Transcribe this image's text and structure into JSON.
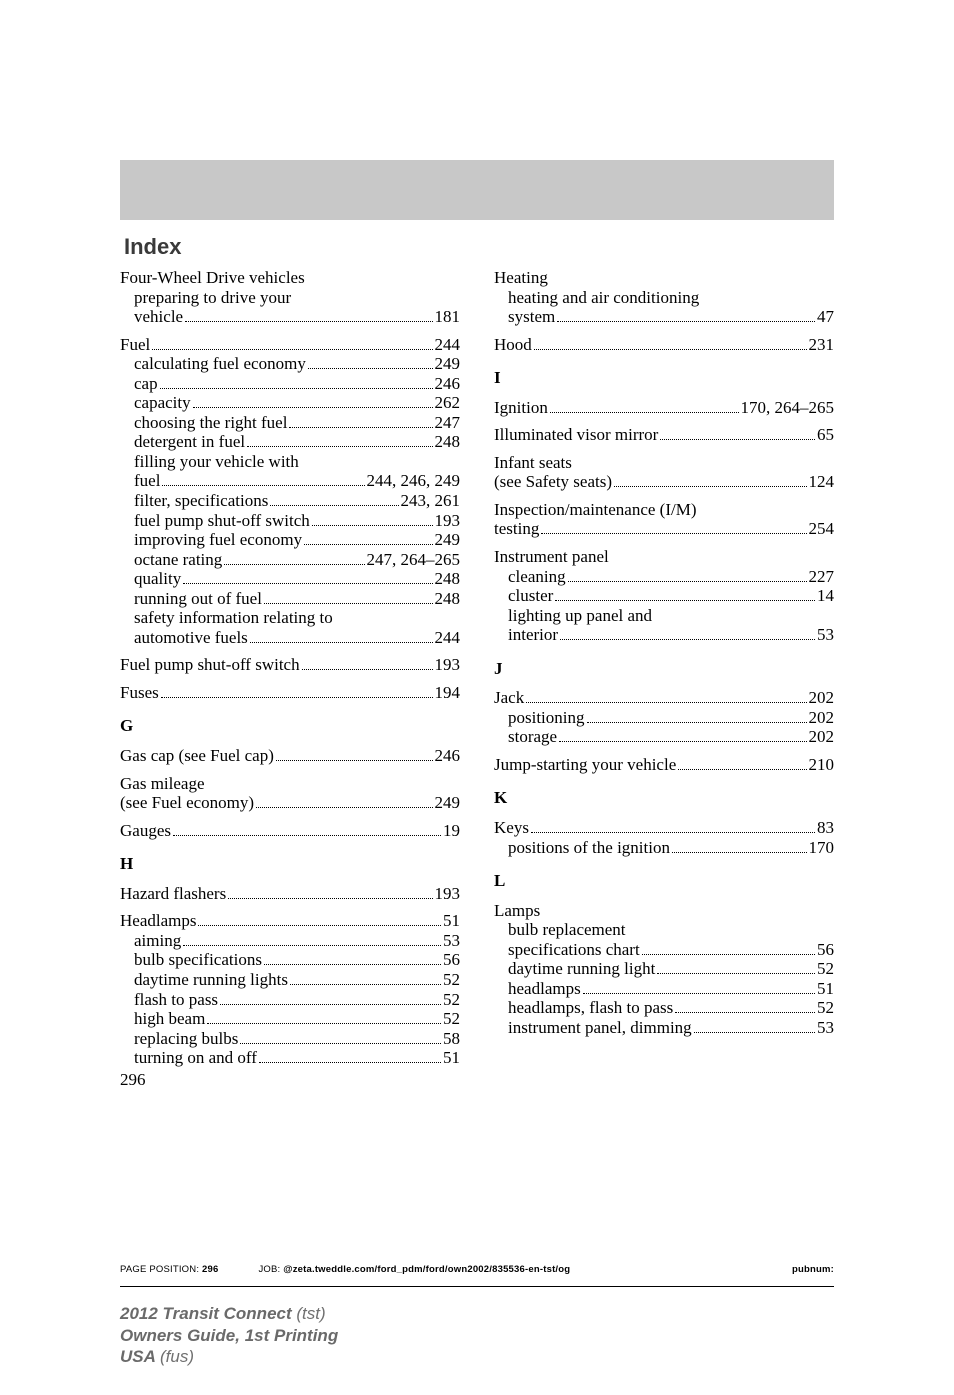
{
  "banner": {
    "bg": "#c8c8c8"
  },
  "title": "Index",
  "page_number": "296",
  "letters": {
    "G": "G",
    "H": "H",
    "I": "I",
    "J": "J",
    "K": "K",
    "L": "L"
  },
  "left": {
    "fwd": {
      "l1": "Four-Wheel Drive vehicles",
      "l2": "preparing to drive your",
      "l3_label": "vehicle",
      "l3_page": "181"
    },
    "fuel": {
      "head_label": "Fuel",
      "head_page": "244",
      "calc_label": "calculating fuel economy",
      "calc_page": "249",
      "cap_label": "cap",
      "cap_page": "246",
      "capacity_label": "capacity",
      "capacity_page": "262",
      "choose_label": "choosing the right fuel",
      "choose_page": "247",
      "det_label": "detergent in fuel",
      "det_page": "248",
      "fill1": "filling your vehicle with",
      "fill2_label": "fuel",
      "fill2_page": "244, 246, 249",
      "filter_label": "filter, specifications",
      "filter_page": "243, 261",
      "pump_label": "fuel pump shut-off switch",
      "pump_page": "193",
      "improve_label": "improving fuel economy",
      "improve_page": "249",
      "octane_label": "octane rating",
      "octane_page": "247, 264–265",
      "quality_label": "quality",
      "quality_page": "248",
      "runout_label": "running out of fuel",
      "runout_page": "248",
      "safety1": "safety information relating to",
      "safety2_label": "automotive fuels",
      "safety2_page": "244"
    },
    "fuelpump": {
      "label": "Fuel pump shut-off switch",
      "page": "193"
    },
    "fuses": {
      "label": "Fuses",
      "page": "194"
    },
    "gascap": {
      "label": "Gas cap (see Fuel cap)",
      "page": "246"
    },
    "gasmileage": {
      "l1": "Gas mileage",
      "l2_label": "(see Fuel economy)",
      "l2_page": "249"
    },
    "gauges": {
      "label": "Gauges",
      "page": "19"
    },
    "hazard": {
      "label": "Hazard flashers",
      "page": "193"
    },
    "headlamps": {
      "head_label": "Headlamps",
      "head_page": "51",
      "aim_label": "aiming",
      "aim_page": "53",
      "bulb_label": "bulb specifications",
      "bulb_page": "56",
      "drl_label": "daytime running lights",
      "drl_page": "52",
      "flash_label": "flash to pass",
      "flash_page": "52",
      "high_label": "high beam",
      "high_page": "52",
      "replace_label": "replacing bulbs",
      "replace_page": "58",
      "turn_label": "turning on and off",
      "turn_page": "51"
    }
  },
  "right": {
    "heating": {
      "l1": "Heating",
      "l2": "heating and air conditioning",
      "l3_label": "system",
      "l3_page": "47"
    },
    "hood": {
      "label": "Hood",
      "page": "231"
    },
    "ignition": {
      "label": "Ignition",
      "page": "170, 264–265"
    },
    "visor": {
      "label": "Illuminated visor mirror",
      "page": "65"
    },
    "infant": {
      "l1": "Infant seats",
      "l2_label": "(see Safety seats)",
      "l2_page": "124"
    },
    "im": {
      "l1": "Inspection/maintenance (I/M)",
      "l2_label": "testing",
      "l2_page": "254"
    },
    "ipanel": {
      "l1": "Instrument panel",
      "clean_label": "cleaning",
      "clean_page": "227",
      "cluster_label": "cluster",
      "cluster_page": "14",
      "light1": "lighting up panel and",
      "light2_label": "interior",
      "light2_page": "53"
    },
    "jack": {
      "head_label": "Jack",
      "head_page": "202",
      "pos_label": "positioning",
      "pos_page": "202",
      "store_label": "storage",
      "store_page": "202"
    },
    "jump": {
      "label": "Jump-starting your vehicle",
      "page": "210"
    },
    "keys": {
      "head_label": "Keys",
      "head_page": "83",
      "pos_label": "positions of the ignition",
      "pos_page": "170"
    },
    "lamps": {
      "l1": "Lamps",
      "l2": "bulb replacement",
      "spec_label": "specifications chart",
      "spec_page": "56",
      "drl_label": "daytime running light",
      "drl_page": "52",
      "head_label": "headlamps",
      "head_page": "51",
      "flash_label": "headlamps, flash to pass",
      "flash_page": "52",
      "dim_label": "instrument panel, dimming",
      "dim_page": "53"
    }
  },
  "jobline": {
    "pos_label": "PAGE POSITION: ",
    "pos_value": "296",
    "job_label": "JOB: ",
    "job_value": "@zeta.tweddle.com/ford_pdm/ford/own2002/835536-en-tst/og",
    "pubnum": "pubnum:"
  },
  "footer": {
    "l1a": "2012 Transit Connect ",
    "l1b": "(tst)",
    "l2": "Owners Guide, 1st Printing",
    "l3a": "USA ",
    "l3b": "(fus)"
  }
}
